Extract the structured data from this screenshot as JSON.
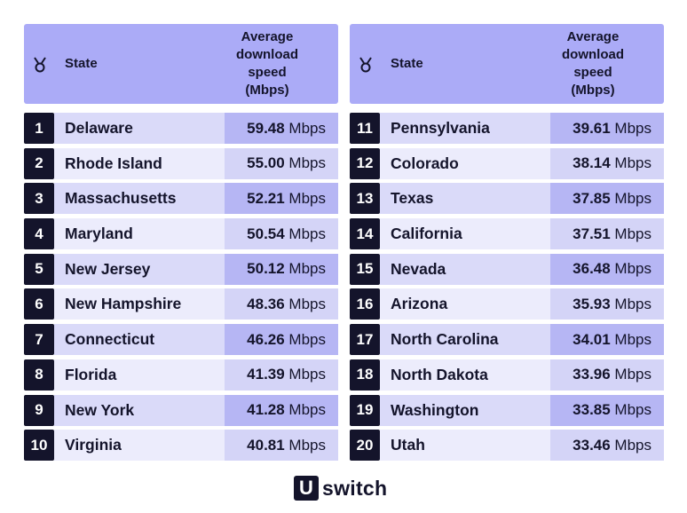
{
  "header": {
    "state_label": "State",
    "speed_label": "Average\ndownload\nspeed\n(Mbps)"
  },
  "icons": {
    "header_rank": "medal-icon"
  },
  "colors": {
    "header_bg": "#ababf7",
    "rank_bg": "#14142b",
    "row_light": "#e4e4fb",
    "speed_cell": "#c7c7f5"
  },
  "chart_data": {
    "type": "table",
    "columns": [
      "Rank",
      "State",
      "Average download speed (Mbps)"
    ],
    "rows": [
      {
        "rank": "1",
        "state": "Delaware",
        "speed": "59.48",
        "unit": "Mbps"
      },
      {
        "rank": "2",
        "state": "Rhode Island",
        "speed": "55.00",
        "unit": "Mbps"
      },
      {
        "rank": "3",
        "state": "Massachusetts",
        "speed": "52.21",
        "unit": "Mbps"
      },
      {
        "rank": "4",
        "state": "Maryland",
        "speed": "50.54",
        "unit": "Mbps"
      },
      {
        "rank": "5",
        "state": "New Jersey",
        "speed": "50.12",
        "unit": "Mbps"
      },
      {
        "rank": "6",
        "state": "New Hampshire",
        "speed": "48.36",
        "unit": "Mbps"
      },
      {
        "rank": "7",
        "state": "Connecticut",
        "speed": "46.26",
        "unit": "Mbps"
      },
      {
        "rank": "8",
        "state": "Florida",
        "speed": "41.39",
        "unit": "Mbps"
      },
      {
        "rank": "9",
        "state": "New York",
        "speed": "41.28",
        "unit": "Mbps"
      },
      {
        "rank": "10",
        "state": "Virginia",
        "speed": "40.81",
        "unit": "Mbps"
      },
      {
        "rank": "11",
        "state": "Pennsylvania",
        "speed": "39.61",
        "unit": "Mbps"
      },
      {
        "rank": "12",
        "state": "Colorado",
        "speed": "38.14",
        "unit": "Mbps"
      },
      {
        "rank": "13",
        "state": "Texas",
        "speed": "37.85",
        "unit": "Mbps"
      },
      {
        "rank": "14",
        "state": "California",
        "speed": "37.51",
        "unit": "Mbps"
      },
      {
        "rank": "15",
        "state": "Nevada",
        "speed": "36.48",
        "unit": "Mbps"
      },
      {
        "rank": "16",
        "state": "Arizona",
        "speed": "35.93",
        "unit": "Mbps"
      },
      {
        "rank": "17",
        "state": "North Carolina",
        "speed": "34.01",
        "unit": "Mbps"
      },
      {
        "rank": "18",
        "state": "North Dakota",
        "speed": "33.96",
        "unit": "Mbps"
      },
      {
        "rank": "19",
        "state": "Washington",
        "speed": "33.85",
        "unit": "Mbps"
      },
      {
        "rank": "20",
        "state": "Utah",
        "speed": "33.46",
        "unit": "Mbps"
      }
    ]
  },
  "footer": {
    "logo_mark": "U",
    "logo_word": "switch"
  }
}
